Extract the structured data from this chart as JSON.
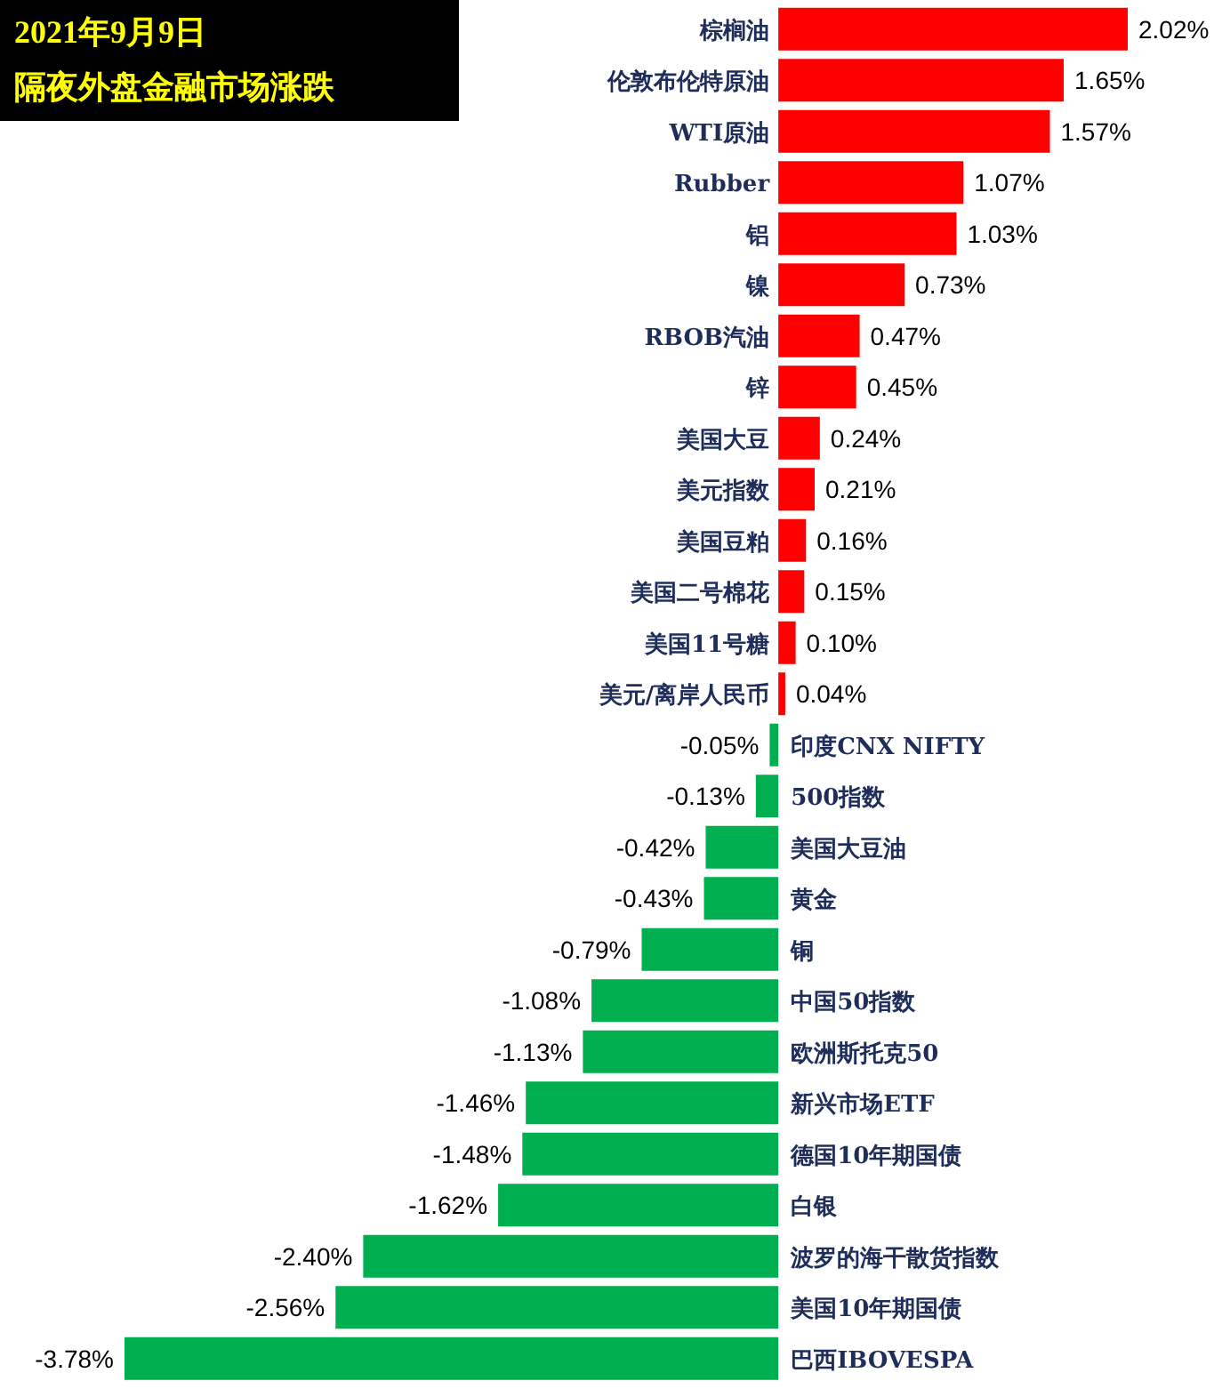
{
  "chart_data": {
    "type": "bar",
    "orientation": "horizontal",
    "title": "2021年9月9日",
    "subtitle": "隔夜外盘金融市场涨跌",
    "categories": [
      "棕榈油",
      "伦敦布伦特原油",
      "WTI原油",
      "Rubber",
      "铝",
      "镍",
      "RBOB汽油",
      "锌",
      "美国大豆",
      "美元指数",
      "美国豆粕",
      "美国二号棉花",
      "美国11号糖",
      "美元/离岸人民币",
      "印度CNX NIFTY",
      "500指数",
      "美国大豆油",
      "黄金",
      "铜",
      "中国50指数",
      "欧洲斯托克50",
      "新兴市场ETF",
      "德国10年期国债",
      "白银",
      "波罗的海干散货指数",
      "美国10年期国债",
      "巴西IBOVESPA"
    ],
    "values": [
      2.02,
      1.65,
      1.57,
      1.07,
      1.03,
      0.73,
      0.47,
      0.45,
      0.24,
      0.21,
      0.16,
      0.15,
      0.1,
      0.04,
      -0.05,
      -0.13,
      -0.42,
      -0.43,
      -0.79,
      -1.08,
      -1.13,
      -1.46,
      -1.48,
      -1.62,
      -2.4,
      -2.56,
      -3.78
    ],
    "value_labels": [
      "2.02%",
      "1.65%",
      "1.57%",
      "1.07%",
      "1.03%",
      "0.73%",
      "0.47%",
      "0.45%",
      "0.24%",
      "0.21%",
      "0.16%",
      "0.15%",
      "0.10%",
      "0.04%",
      "-0.05%",
      "-0.13%",
      "-0.42%",
      "-0.43%",
      "-0.79%",
      "-1.08%",
      "-1.13%",
      "-1.46%",
      "-1.48%",
      "-1.62%",
      "-2.40%",
      "-2.56%",
      "-3.78%"
    ],
    "colors": [
      "#ff0000",
      "#ff0000",
      "#ff0000",
      "#ff0000",
      "#ff0000",
      "#ff0000",
      "#ff0000",
      "#ff0000",
      "#ff0000",
      "#ff0000",
      "#ff0000",
      "#ff0000",
      "#ff0000",
      "#ff0000",
      "#00b050",
      "#00b050",
      "#00b050",
      "#00b050",
      "#00b050",
      "#00b050",
      "#00b050",
      "#00b050",
      "#00b050",
      "#00b050",
      "#00b050",
      "#00b050",
      "#00b050"
    ]
  }
}
